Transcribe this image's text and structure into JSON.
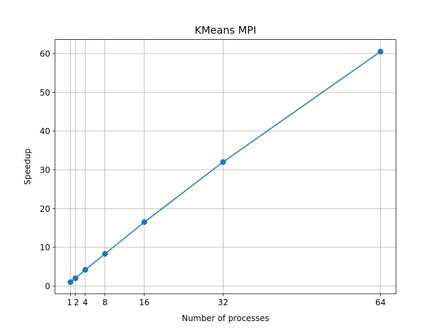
{
  "chart_data": {
    "type": "line",
    "title": "KMeans MPI",
    "xlabel": "Number of processes",
    "ylabel": "Speedup",
    "xlim": [
      -2.15,
      67.15
    ],
    "ylim": [
      -1.97,
      63.6
    ],
    "xticks": [
      1,
      2,
      4,
      8,
      16,
      32,
      64
    ],
    "xtick_labels": [
      "1",
      "2",
      "4",
      "8",
      "16",
      "32",
      "64"
    ],
    "yticks": [
      0,
      10,
      20,
      30,
      40,
      50,
      60
    ],
    "ytick_labels": [
      "0",
      "10",
      "20",
      "30",
      "40",
      "50",
      "60"
    ],
    "grid": true,
    "series": [
      {
        "color": "#1f77b4",
        "marker": "circle",
        "x": [
          1,
          2,
          4,
          8,
          16,
          32,
          64
        ],
        "y": [
          1.0,
          2.0,
          4.2,
          8.3,
          16.5,
          32.0,
          60.5
        ]
      }
    ]
  }
}
